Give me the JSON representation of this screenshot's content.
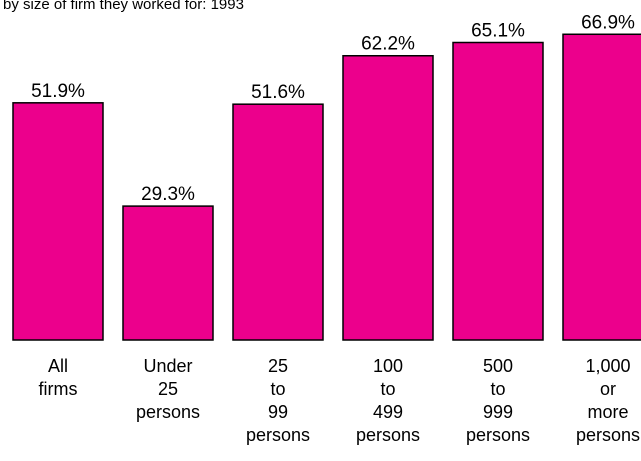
{
  "chart_data": {
    "type": "bar",
    "subtitle": "by size of firm they worked for: 1993",
    "categories": [
      [
        "All",
        "firms"
      ],
      [
        "Under",
        "25",
        "persons"
      ],
      [
        "25",
        "to",
        "99",
        "persons"
      ],
      [
        "100",
        "to",
        "499",
        "persons"
      ],
      [
        "500",
        "to",
        "999",
        "persons"
      ],
      [
        "1,000",
        "or",
        "more",
        "persons"
      ]
    ],
    "values": [
      51.9,
      29.3,
      51.6,
      62.2,
      65.1,
      66.9
    ],
    "data_labels": [
      "51.9%",
      "29.3%",
      "51.6%",
      "62.2%",
      "65.1%",
      "66.9%"
    ],
    "ylim": [
      0,
      100
    ],
    "bar_color": "#EC008C",
    "grid": false,
    "legend": "none"
  }
}
